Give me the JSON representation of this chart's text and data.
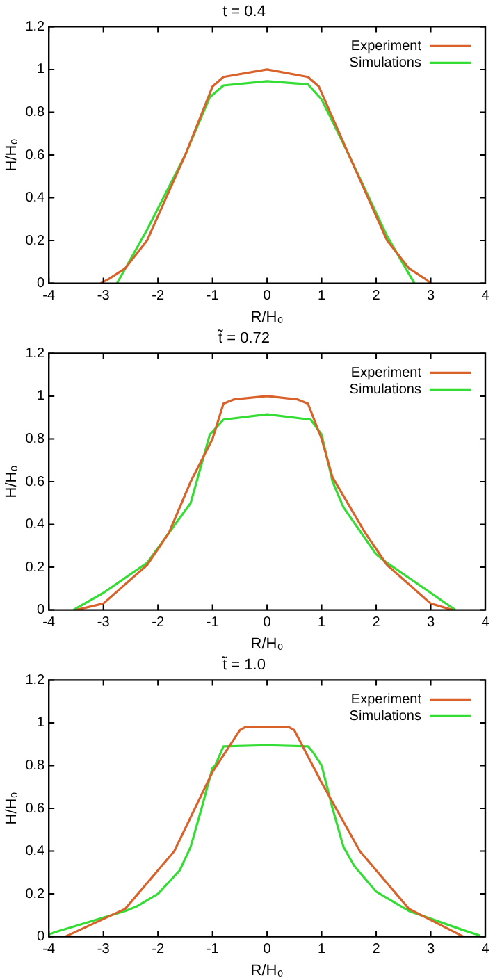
{
  "chart_data": [
    {
      "type": "line",
      "title": "t = 0.4",
      "xlabel": "R/H₀",
      "ylabel": "H/H₀",
      "xlim": [
        -4,
        4
      ],
      "xticks": [
        -4,
        -3,
        -2,
        -1,
        0,
        1,
        2,
        3,
        4
      ],
      "ylim": [
        0,
        1.2
      ],
      "yticks": [
        0,
        0.2,
        0.4,
        0.6,
        0.8,
        1,
        1.2
      ],
      "grid": false,
      "legend": "top right",
      "marker": "none",
      "series": [
        {
          "name": "Experiment",
          "color": "#d9622b",
          "x": [
            -3.05,
            -2.9,
            -2.6,
            -2.2,
            -1.5,
            -1.0,
            -0.8,
            0,
            0.75,
            0.95,
            1.5,
            2.2,
            2.6,
            2.9,
            3.0
          ],
          "values": [
            0,
            0.02,
            0.07,
            0.2,
            0.6,
            0.92,
            0.965,
            1.0,
            0.965,
            0.92,
            0.6,
            0.2,
            0.07,
            0.02,
            0
          ]
        },
        {
          "name": "Simulations",
          "color": "#33dd33",
          "x": [
            -2.75,
            -2.2,
            -1.5,
            -1.05,
            -0.8,
            0,
            0.75,
            1.0,
            1.5,
            2.2,
            2.7
          ],
          "values": [
            0,
            0.25,
            0.6,
            0.87,
            0.925,
            0.945,
            0.93,
            0.86,
            0.6,
            0.22,
            0
          ]
        }
      ]
    },
    {
      "type": "line",
      "title": "t̃ = 0.72",
      "xlabel": "R/H₀",
      "ylabel": "H/H₀",
      "xlim": [
        -4,
        4
      ],
      "xticks": [
        -4,
        -3,
        -2,
        -1,
        0,
        1,
        2,
        3,
        4
      ],
      "ylim": [
        0,
        1.2
      ],
      "yticks": [
        0,
        0.2,
        0.4,
        0.6,
        0.8,
        1,
        1.2
      ],
      "grid": false,
      "legend": "top right",
      "marker": "none",
      "series": [
        {
          "name": "Experiment",
          "color": "#d9622b",
          "x": [
            -3.5,
            -3.0,
            -2.2,
            -1.8,
            -1.4,
            -1.0,
            -0.8,
            -0.6,
            0,
            0.55,
            0.75,
            1.0,
            1.2,
            1.8,
            2.2,
            3.0,
            3.4
          ],
          "values": [
            0,
            0.03,
            0.21,
            0.36,
            0.6,
            0.8,
            0.965,
            0.985,
            1.0,
            0.985,
            0.965,
            0.8,
            0.62,
            0.36,
            0.21,
            0.03,
            0
          ]
        },
        {
          "name": "Simulations",
          "color": "#33dd33",
          "x": [
            -3.55,
            -3.0,
            -2.2,
            -1.4,
            -1.05,
            -0.8,
            0,
            0.8,
            1.0,
            1.2,
            1.4,
            2.0,
            2.2,
            3.0,
            3.45
          ],
          "values": [
            0,
            0.08,
            0.22,
            0.5,
            0.82,
            0.89,
            0.915,
            0.89,
            0.82,
            0.6,
            0.48,
            0.26,
            0.22,
            0.08,
            0
          ]
        }
      ]
    },
    {
      "type": "line",
      "title": "t̃ = 1.0",
      "xlabel": "R/H₀",
      "ylabel": "H/H₀",
      "xlim": [
        -4,
        4
      ],
      "xticks": [
        -4,
        -3,
        -2,
        -1,
        0,
        1,
        2,
        3,
        4
      ],
      "ylim": [
        0,
        1.2
      ],
      "yticks": [
        0,
        0.2,
        0.4,
        0.6,
        0.8,
        1,
        1.2
      ],
      "grid": false,
      "legend": "top right",
      "marker": "none",
      "series": [
        {
          "name": "Experiment",
          "color": "#d9622b",
          "x": [
            -3.7,
            -2.6,
            -1.7,
            -1.0,
            -0.5,
            -0.4,
            0.4,
            0.5,
            1.0,
            1.7,
            2.6,
            3.6
          ],
          "values": [
            0,
            0.13,
            0.4,
            0.77,
            0.965,
            0.98,
            0.98,
            0.965,
            0.72,
            0.4,
            0.13,
            0
          ]
        },
        {
          "name": "Simulations",
          "color": "#33dd33",
          "x": [
            -4,
            -3.9,
            -2.6,
            -2.4,
            -2.0,
            -1.6,
            -1.4,
            -1.2,
            -1.0,
            -0.95,
            -0.8,
            0,
            0.75,
            0.85,
            1.0,
            1.2,
            1.4,
            1.6,
            2.0,
            2.6,
            3.6,
            3.9
          ],
          "values": [
            0.01,
            0.02,
            0.12,
            0.14,
            0.2,
            0.31,
            0.42,
            0.6,
            0.79,
            0.8,
            0.89,
            0.895,
            0.89,
            0.86,
            0.8,
            0.6,
            0.42,
            0.33,
            0.21,
            0.12,
            0.03,
            0.005
          ]
        }
      ]
    }
  ]
}
